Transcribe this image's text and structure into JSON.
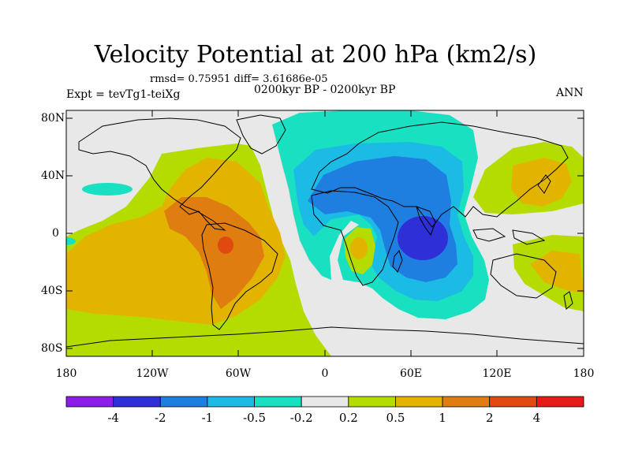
{
  "header": {
    "title": "Velocity Potential at 200 hPa (km2/s)",
    "stats": "rmsd= 0.75951 diff= 3.61686e-05",
    "period": "0200kyr BP - 0200kyr BP",
    "experiment": "Expt = tevTg1-teiXg",
    "season": "ANN"
  },
  "axes": {
    "lat_labels": [
      "80N",
      "40N",
      "0",
      "40S",
      "80S"
    ],
    "lon_labels": [
      "180",
      "120W",
      "60W",
      "0",
      "60E",
      "120E",
      "180"
    ]
  },
  "colorbar": {
    "labels": [
      "-4",
      "-2",
      "-1",
      "-0.5",
      "-0.2",
      "0.2",
      "0.5",
      "1",
      "2",
      "4"
    ],
    "colors": [
      "#8a1ee8",
      "#2f2fd8",
      "#1f7fe0",
      "#1bbbe6",
      "#19e0c0",
      "#e8e8e8",
      "#b4dc00",
      "#e2b400",
      "#e07d10",
      "#e04a10",
      "#e61a1a"
    ]
  },
  "map": {
    "background": "#e8e8e8",
    "coastline_color": "#000000"
  }
}
